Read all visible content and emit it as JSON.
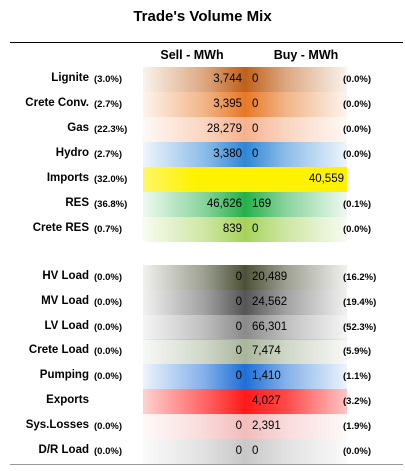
{
  "title": "Trade's Volume Mix",
  "columns": {
    "sell": "Sell - MWh",
    "buy": "Buy - MWh"
  },
  "colors": {
    "Lignite": "#c0601a",
    "Crete Conv.": "#e77825",
    "Gas": "#f6b28e",
    "Hydro": "#2f86d6",
    "Imports": "#fff200",
    "RES": "#27b04a",
    "Crete RES": "#a6d25a",
    "HV Load": "#4c5136",
    "MV Load": "#555555",
    "LV Load": "#8a8a8a",
    "Crete Load": "#a9b59b",
    "Pumping": "#1e6fd6",
    "Exports": "#ff1a1a",
    "Sys.Losses": "#f3bcbc",
    "D/R Load": "#c8c8c8"
  },
  "chart_data": {
    "type": "table",
    "title": "Trade's Volume Mix",
    "columns": [
      "Sell - MWh",
      "Buy - MWh"
    ],
    "rows": [
      {
        "label": "Lignite",
        "sell_pct": "(3.0%)",
        "sell": "3,744",
        "buy": "0",
        "buy_pct": "(0.0%)"
      },
      {
        "label": "Crete Conv.",
        "sell_pct": "(2.7%)",
        "sell": "3,395",
        "buy": "0",
        "buy_pct": "(0.0%)"
      },
      {
        "label": "Gas",
        "sell_pct": "(22.3%)",
        "sell": "28,279",
        "buy": "0",
        "buy_pct": "(0.0%)"
      },
      {
        "label": "Hydro",
        "sell_pct": "(2.7%)",
        "sell": "3,380",
        "buy": "0",
        "buy_pct": "(0.0%)"
      },
      {
        "label": "Imports",
        "sell_pct": "(32.0%)",
        "sell": "40,559",
        "buy": "",
        "buy_pct": ""
      },
      {
        "label": "RES",
        "sell_pct": "(36.8%)",
        "sell": "46,626",
        "buy": "169",
        "buy_pct": "(0.1%)"
      },
      {
        "label": "Crete RES",
        "sell_pct": "(0.7%)",
        "sell": "839",
        "buy": "0",
        "buy_pct": "(0.0%)"
      },
      {
        "label": "HV Load",
        "sell_pct": "(0.0%)",
        "sell": "0",
        "buy": "20,489",
        "buy_pct": "(16.2%)"
      },
      {
        "label": "MV Load",
        "sell_pct": "(0.0%)",
        "sell": "0",
        "buy": "24,562",
        "buy_pct": "(19.4%)"
      },
      {
        "label": "LV Load",
        "sell_pct": "(0.0%)",
        "sell": "0",
        "buy": "66,301",
        "buy_pct": "(52.3%)"
      },
      {
        "label": "Crete Load",
        "sell_pct": "(0.0%)",
        "sell": "0",
        "buy": "7,474",
        "buy_pct": "(5.9%)"
      },
      {
        "label": "Pumping",
        "sell_pct": "(0.0%)",
        "sell": "0",
        "buy": "1,410",
        "buy_pct": "(1.1%)"
      },
      {
        "label": "Exports",
        "sell_pct": "",
        "sell": "",
        "buy": "4,027",
        "buy_pct": "(3.2%)"
      },
      {
        "label": "Sys.Losses",
        "sell_pct": "(0.0%)",
        "sell": "0",
        "buy": "2,391",
        "buy_pct": "(1.9%)"
      },
      {
        "label": "D/R Load",
        "sell_pct": "(0.0%)",
        "sell": "0",
        "buy": "0",
        "buy_pct": "(0.0%)"
      }
    ]
  }
}
